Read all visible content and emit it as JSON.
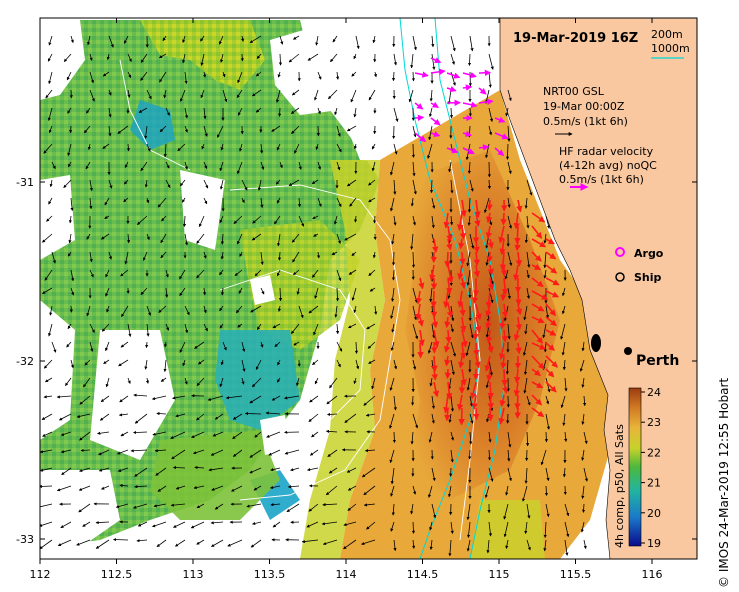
{
  "title": "19-Mar-2019 16Z",
  "depth_legend": {
    "line1": "200m",
    "line2": "1000m"
  },
  "model_legend": {
    "line1": "NRT00 GSL",
    "line2": "19-Mar 00:00Z",
    "line3": "0.5m/s (1kt 6h)"
  },
  "radar_legend": {
    "line1": "HF radar velocity",
    "line2": "(4-12h avg) noQC",
    "line3": "0.5m/s (1kt 6h)"
  },
  "markers": {
    "argo": "Argo",
    "ship": "Ship"
  },
  "city": "Perth",
  "x_ticks": [
    "112",
    "112.5",
    "113",
    "113.5",
    "114",
    "114.5",
    "115",
    "115.5",
    "116"
  ],
  "y_ticks": [
    "-31",
    "-32",
    "-33"
  ],
  "colorbar": {
    "label": "4h comp, p50, All Sats",
    "ticks": [
      "24",
      "23",
      "22",
      "21",
      "20",
      "19"
    ]
  },
  "credit": "© IMOS 24-Mar-2019 12:55 Hobart",
  "colors": {
    "land": "#f9c8a0",
    "warm": "#c8641c",
    "mid": "#e8a53a",
    "green": "#4fb43c",
    "cool": "#1aa3c8",
    "radar_arrow": "#ff1a1a",
    "argo": "#ff00ff",
    "isobath": "#00d8d8"
  }
}
